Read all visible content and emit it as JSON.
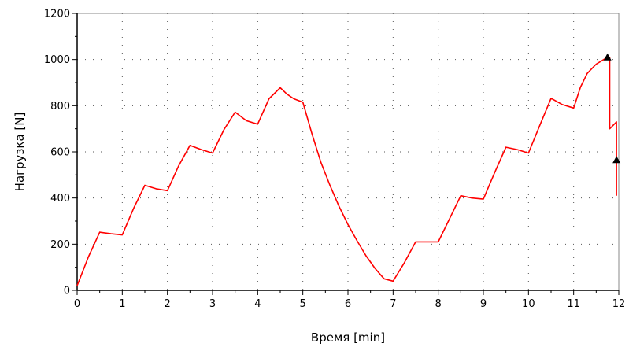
{
  "chart_data": {
    "type": "line",
    "title": "",
    "xlabel": "Время [min]",
    "ylabel": "Нагрузка [N]",
    "xlim": [
      0,
      12
    ],
    "ylim": [
      0,
      1200
    ],
    "x_ticks": [
      "0",
      "1",
      "2",
      "3",
      "4",
      "5",
      "6",
      "7",
      "8",
      "9",
      "10",
      "11",
      "12"
    ],
    "y_ticks": [
      "0",
      "200",
      "400",
      "600",
      "800",
      "1000",
      "1200"
    ],
    "grid": true,
    "line_color": "#ff0000",
    "marker_color": "#000000",
    "series": [
      {
        "x": [
          0,
          0.25,
          0.5,
          0.75,
          1.0,
          1.25,
          1.5,
          1.75,
          2.0,
          2.25,
          2.5,
          2.75,
          3.0,
          3.25,
          3.5,
          3.75,
          4.0,
          4.25,
          4.5,
          4.65,
          4.8,
          5.0,
          5.2,
          5.4,
          5.6,
          5.8,
          6.0,
          6.2,
          6.4,
          6.6,
          6.8,
          7.0,
          7.25,
          7.5,
          7.75,
          8.0,
          8.25,
          8.5,
          8.75,
          9.0,
          9.25,
          9.5,
          9.75,
          10.0,
          10.25,
          10.5,
          10.75,
          11.0,
          11.15,
          11.3,
          11.5,
          11.75,
          11.8,
          11.8,
          11.9,
          11.95,
          11.95
        ],
        "y": [
          20,
          145,
          252,
          245,
          240,
          355,
          455,
          440,
          432,
          540,
          628,
          610,
          595,
          695,
          772,
          735,
          720,
          830,
          878,
          850,
          830,
          815,
          680,
          555,
          455,
          365,
          285,
          215,
          150,
          95,
          50,
          40,
          120,
          210,
          210,
          210,
          310,
          410,
          400,
          395,
          510,
          620,
          610,
          595,
          715,
          832,
          805,
          790,
          880,
          940,
          980,
          1010,
          1010,
          700,
          720,
          730,
          410
        ]
      }
    ],
    "markers": [
      {
        "x": 11.75,
        "y": 1010,
        "shape": "triangle"
      },
      {
        "x": 11.95,
        "y": 565,
        "shape": "triangle"
      }
    ]
  }
}
